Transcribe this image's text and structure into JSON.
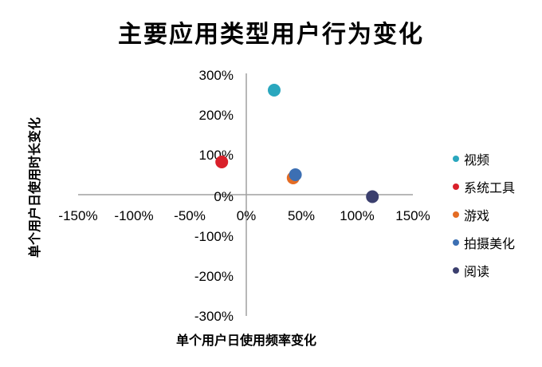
{
  "chart_data": {
    "type": "scatter",
    "title": "主要应用类型用户行为变化",
    "xlabel": "单个用户日使用频率变化",
    "ylabel": "单个用户日使用时长变化",
    "xlim": [
      -1.5,
      1.5
    ],
    "ylim": [
      -3,
      3
    ],
    "x_ticks": [
      "-150%",
      "-100%",
      "-50%",
      "0%",
      "50%",
      "100%",
      "150%"
    ],
    "y_ticks": [
      "300%",
      "200%",
      "100%",
      "0%",
      "-100%",
      "-200%",
      "-300%"
    ],
    "legend_position": "right",
    "grid": false,
    "series": [
      {
        "name": "视频",
        "color": "#2aa7be",
        "x": 0.25,
        "y": 2.62
      },
      {
        "name": "系统工具",
        "color": "#d9202a",
        "x": -0.22,
        "y": 0.82
      },
      {
        "name": "游戏",
        "color": "#e46c24",
        "x": 0.42,
        "y": 0.42
      },
      {
        "name": "拍摄美化",
        "color": "#3c6fb3",
        "x": 0.44,
        "y": 0.5
      },
      {
        "name": "阅读",
        "color": "#3b3f6e",
        "x": 1.13,
        "y": -0.05
      }
    ]
  }
}
